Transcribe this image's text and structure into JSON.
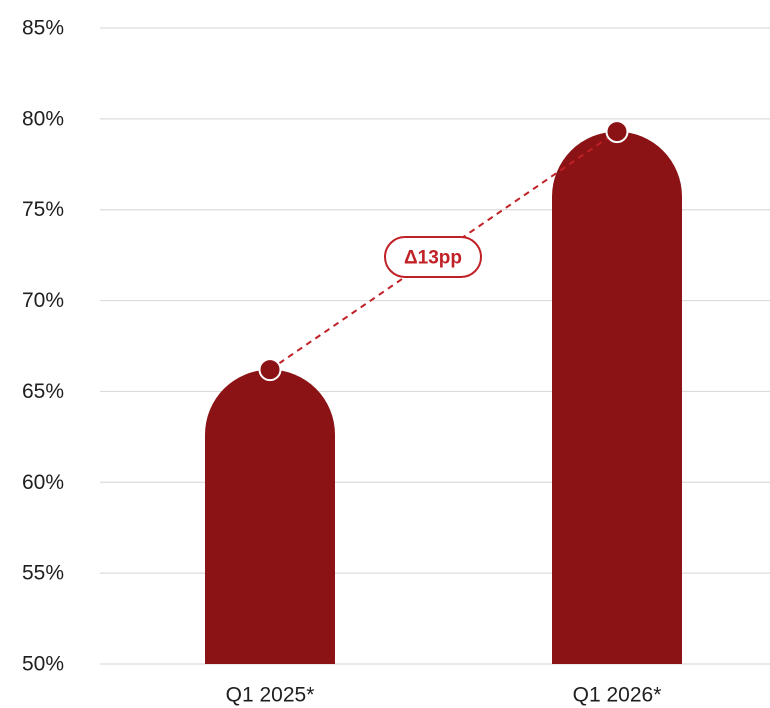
{
  "chart_data": {
    "type": "bar",
    "title": "",
    "xlabel": "",
    "ylabel": "",
    "categories": [
      "Q1 2025*",
      "Q1 2026*"
    ],
    "values": [
      66.2,
      79.3
    ],
    "ylim": [
      50,
      85
    ],
    "y_ticks": [
      85,
      80,
      75,
      70,
      65,
      60,
      55,
      50
    ],
    "y_tick_labels": [
      "85%",
      "80%",
      "75%",
      "70%",
      "65%",
      "60%",
      "55%",
      "50%"
    ],
    "grid": true,
    "annotation": {
      "text": "Δ13pp",
      "from": "Q1 2025*",
      "to": "Q1 2026*",
      "style": "dashed connector"
    }
  },
  "colors": {
    "bar": "#8b1215",
    "accent": "#c02126",
    "grid": "#dcdcdc",
    "text": "#1f1f1f"
  }
}
